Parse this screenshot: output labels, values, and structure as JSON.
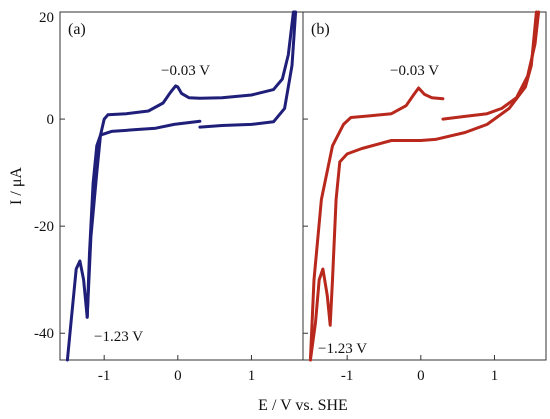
{
  "chart_data": [
    {
      "type": "line",
      "panel_label": "(a)",
      "xlim": [
        -1.6,
        1.7
      ],
      "ylim": [
        -45,
        20
      ],
      "grid": false,
      "x_ticks": [
        -1,
        0,
        1
      ],
      "x_tick_labels": [
        "-1",
        "0",
        "1"
      ],
      "y_ticks": [
        -40,
        -20,
        0,
        20
      ],
      "y_tick_labels": [
        "-40",
        "-20",
        "0",
        "20"
      ],
      "xlabel": "E / V vs. SHE",
      "ylabel": "I / μA",
      "series": [
        {
          "color": "#1f1f7a",
          "points": [
            [
              0.3,
              -1.5
            ],
            [
              0.6,
              -1.2
            ],
            [
              1.0,
              -1.0
            ],
            [
              1.3,
              -0.5
            ],
            [
              1.45,
              2.0
            ],
            [
              1.55,
              10.0
            ],
            [
              1.6,
              20.0
            ],
            [
              1.57,
              20.0
            ],
            [
              1.5,
              12.0
            ],
            [
              1.42,
              7.5
            ],
            [
              1.3,
              5.5
            ],
            [
              1.0,
              4.5
            ],
            [
              0.6,
              4.0
            ],
            [
              0.3,
              3.9
            ],
            [
              0.15,
              4.0
            ],
            [
              0.05,
              4.8
            ],
            [
              0.0,
              6.0
            ],
            [
              -0.03,
              6.2
            ],
            [
              -0.1,
              5.0
            ],
            [
              -0.2,
              3.0
            ],
            [
              -0.4,
              1.5
            ],
            [
              -0.7,
              1.0
            ],
            [
              -0.95,
              0.8
            ],
            [
              -1.0,
              0.0
            ],
            [
              -1.05,
              -3.0
            ],
            [
              -1.1,
              -10.0
            ],
            [
              -1.18,
              -22.0
            ],
            [
              -1.23,
              -37.0
            ],
            [
              -1.28,
              -30.0
            ],
            [
              -1.33,
              -26.5
            ],
            [
              -1.38,
              -28.0
            ],
            [
              -1.45,
              -38.0
            ],
            [
              -1.5,
              -45.0
            ]
          ]
        },
        {
          "color": "#1f1f7a",
          "points": [
            [
              -1.23,
              -37.0
            ],
            [
              -1.2,
              -25.0
            ],
            [
              -1.15,
              -12.0
            ],
            [
              -1.1,
              -5.0
            ],
            [
              -1.05,
              -3.0
            ],
            [
              -0.9,
              -2.3
            ],
            [
              -0.6,
              -2.0
            ],
            [
              -0.3,
              -1.7
            ],
            [
              -0.05,
              -1.0
            ],
            [
              0.3,
              -0.4
            ]
          ]
        }
      ],
      "annotations": [
        {
          "text": "−0.03 V",
          "x": -0.03,
          "y": 6.2
        },
        {
          "text": "−1.23 V",
          "x": -1.23,
          "y": -37.0
        }
      ]
    },
    {
      "type": "line",
      "panel_label": "(b)",
      "xlim": [
        -1.6,
        1.7
      ],
      "ylim": [
        -45,
        20
      ],
      "grid": false,
      "x_ticks": [
        -1,
        0,
        1
      ],
      "x_tick_labels": [
        "-1",
        "0",
        "1"
      ],
      "y_ticks": [
        -40,
        -20,
        0,
        20
      ],
      "y_tick_labels": [],
      "series": [
        {
          "color": "#b8281c",
          "points": [
            [
              0.3,
              0.0
            ],
            [
              0.6,
              0.5
            ],
            [
              0.9,
              1.0
            ],
            [
              1.1,
              2.0
            ],
            [
              1.3,
              4.0
            ],
            [
              1.45,
              8.0
            ],
            [
              1.55,
              14.0
            ],
            [
              1.6,
              20.0
            ]
          ]
        },
        {
          "color": "#b8281c",
          "points": [
            [
              1.57,
              20.0
            ],
            [
              1.5,
              10.0
            ],
            [
              1.42,
              6.0
            ],
            [
              1.2,
              2.0
            ],
            [
              0.9,
              -1.0
            ],
            [
              0.6,
              -2.5
            ],
            [
              0.2,
              -3.8
            ],
            [
              0.0,
              -4.0
            ],
            [
              -0.4,
              -4.0
            ],
            [
              -0.8,
              -5.5
            ],
            [
              -1.0,
              -6.5
            ],
            [
              -1.1,
              -8.0
            ],
            [
              -1.15,
              -15.0
            ],
            [
              -1.2,
              -30.0
            ],
            [
              -1.23,
              -38.5
            ],
            [
              -1.27,
              -33.0
            ],
            [
              -1.33,
              -28.0
            ],
            [
              -1.38,
              -30.0
            ],
            [
              -1.43,
              -38.0
            ],
            [
              -1.5,
              -45.0
            ]
          ]
        },
        {
          "color": "#b8281c",
          "points": [
            [
              -1.5,
              -45.0
            ],
            [
              -1.45,
              -30.0
            ],
            [
              -1.35,
              -15.0
            ],
            [
              -1.2,
              -5.0
            ],
            [
              -1.05,
              -1.0
            ],
            [
              -0.95,
              0.3
            ],
            [
              -0.7,
              0.6
            ],
            [
              -0.4,
              1.0
            ],
            [
              -0.2,
              2.5
            ],
            [
              -0.1,
              4.5
            ],
            [
              -0.03,
              5.8
            ],
            [
              0.05,
              4.6
            ],
            [
              0.15,
              4.0
            ],
            [
              0.3,
              3.8
            ]
          ]
        }
      ],
      "annotations": [
        {
          "text": "−0.03 V",
          "x": -0.03,
          "y": 5.8
        },
        {
          "text": "−1.23 V",
          "x": -1.23,
          "y": -38.5
        }
      ]
    }
  ]
}
